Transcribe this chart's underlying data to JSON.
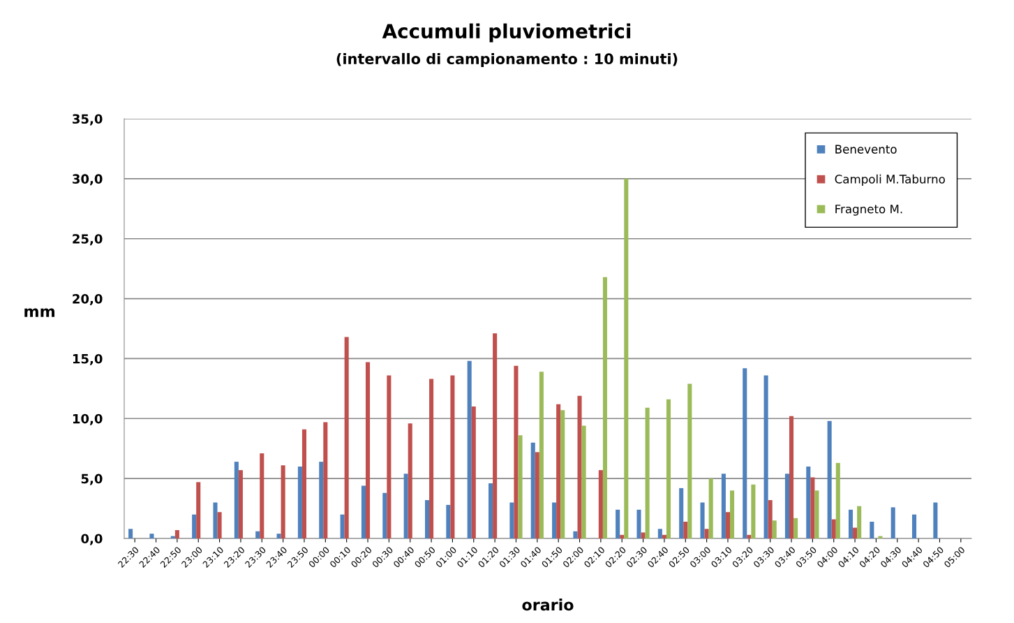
{
  "chart_data": {
    "type": "bar",
    "title": "Accumuli pluviometrici",
    "subtitle": "(intervallo di campionamento : 10 minuti)",
    "xlabel": "orario",
    "ylabel": "mm",
    "categories": [
      "22:30",
      "22:40",
      "22:50",
      "23:00",
      "23:10",
      "23:20",
      "23:30",
      "23:40",
      "23:50",
      "00:00",
      "00:10",
      "00:20",
      "00:30",
      "00:40",
      "00:50",
      "01:00",
      "01:10",
      "01:20",
      "01:30",
      "01:40",
      "01:50",
      "02:00",
      "02:10",
      "02:20",
      "02:30",
      "02:40",
      "02:50",
      "03:00",
      "03:10",
      "03:20",
      "03:30",
      "03:40",
      "03:50",
      "04:00",
      "04:10",
      "04:20",
      "04:30",
      "04:40",
      "04:50",
      "05:00"
    ],
    "series": [
      {
        "name": "Benevento",
        "color": "#4f81bd",
        "values": [
          0.8,
          0.4,
          0.2,
          2.0,
          3.0,
          6.4,
          0.6,
          0.4,
          6.0,
          6.4,
          2.0,
          4.4,
          3.8,
          5.4,
          3.2,
          2.8,
          14.8,
          4.6,
          3.0,
          8.0,
          3.0,
          0.6,
          null,
          2.4,
          2.4,
          0.8,
          4.2,
          3.0,
          5.4,
          14.2,
          13.6,
          5.4,
          6.0,
          9.8,
          2.4,
          1.4,
          2.6,
          2.0,
          3.0,
          null
        ]
      },
      {
        "name": "Campoli M.Taburno",
        "color": "#c0504d",
        "values": [
          null,
          null,
          0.7,
          4.7,
          2.2,
          5.7,
          7.1,
          6.1,
          9.1,
          9.7,
          16.8,
          14.7,
          13.6,
          9.6,
          13.3,
          13.6,
          11.0,
          17.1,
          14.4,
          7.2,
          11.2,
          11.9,
          5.7,
          0.3,
          0.5,
          0.3,
          1.4,
          0.8,
          2.2,
          0.3,
          3.2,
          10.2,
          5.1,
          1.6,
          0.9,
          null,
          null,
          null,
          null,
          null
        ]
      },
      {
        "name": "Fragneto M.",
        "color": "#9bbb59",
        "values": [
          null,
          null,
          null,
          null,
          null,
          null,
          null,
          null,
          null,
          null,
          null,
          null,
          null,
          null,
          null,
          null,
          null,
          null,
          8.6,
          13.9,
          10.7,
          9.4,
          21.8,
          30.0,
          10.9,
          11.6,
          12.9,
          5.0,
          4.0,
          4.5,
          1.5,
          1.7,
          4.0,
          6.3,
          2.7,
          0.2,
          null,
          null,
          null,
          null
        ]
      }
    ],
    "ylim": [
      0,
      35
    ],
    "yticks": [
      {
        "value": 0,
        "label": "0,0"
      },
      {
        "value": 5,
        "label": "5,0"
      },
      {
        "value": 10,
        "label": "10,0"
      },
      {
        "value": 15,
        "label": "15,0"
      },
      {
        "value": 20,
        "label": "20,0"
      },
      {
        "value": 25,
        "label": "25,0"
      },
      {
        "value": 30,
        "label": "30,0"
      },
      {
        "value": 35,
        "label": "35,0"
      }
    ],
    "grid": "y",
    "legend": "top right"
  }
}
